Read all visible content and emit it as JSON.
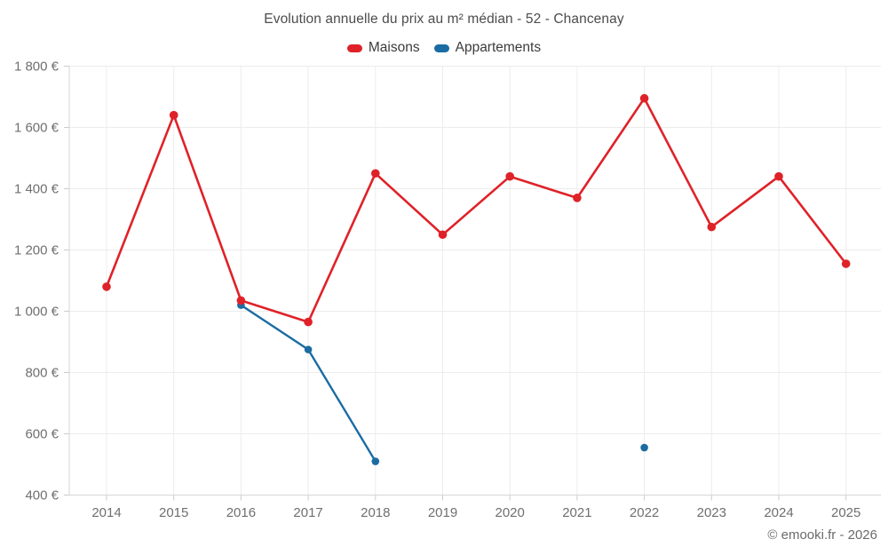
{
  "header": {
    "title": "Evolution annuelle du prix au m² médian - 52 - Chancenay"
  },
  "legend": [
    {
      "label": "Maisons",
      "color": "#df2228"
    },
    {
      "label": "Appartements",
      "color": "#1a6ca3"
    }
  ],
  "chart_data": {
    "type": "line",
    "x": [
      "2014",
      "2015",
      "2016",
      "2017",
      "2018",
      "2019",
      "2020",
      "2021",
      "2022",
      "2023",
      "2024",
      "2025"
    ],
    "series": [
      {
        "name": "Maisons",
        "color": "#df2228",
        "values": [
          1080,
          1640,
          1035,
          965,
          1450,
          1250,
          1440,
          1370,
          1695,
          1275,
          1440,
          1155
        ]
      },
      {
        "name": "Appartements",
        "color": "#1a6ca3",
        "values": [
          null,
          null,
          1020,
          875,
          510,
          null,
          null,
          null,
          555,
          null,
          null,
          null
        ]
      }
    ],
    "title": "Evolution annuelle du prix au m² médian - 52 - Chancenay",
    "xlabel": "",
    "ylabel": "",
    "ylim": [
      400,
      1800
    ],
    "y_tick_step": 200,
    "y_tick_labels": [
      "400 €",
      "600 €",
      "800 €",
      "1 000 €",
      "1 200 €",
      "1 400 €",
      "1 600 €",
      "1 800 €"
    ],
    "grid": true,
    "legend_position": "top",
    "grid_color": "#ececec",
    "axis_color": "#d6d6d6",
    "tick_color": "#cccccc",
    "label_color": "#6f6f6f"
  },
  "footer": {
    "credit": "© emooki.fr - 2026"
  }
}
